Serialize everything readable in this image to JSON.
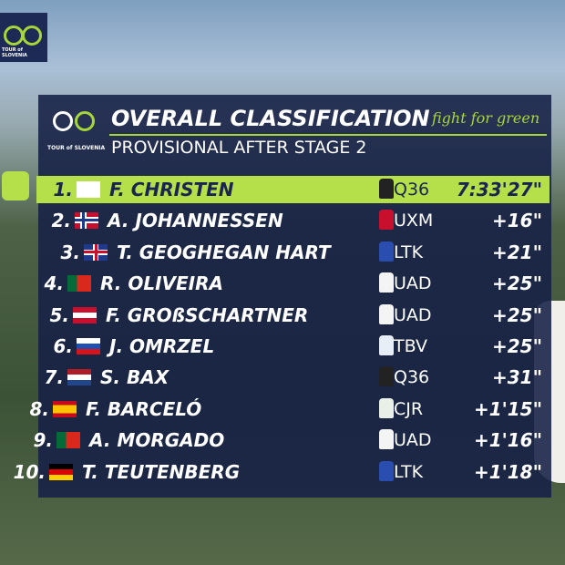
{
  "logo": {
    "text": "TOUR of SLOVENIA"
  },
  "header": {
    "logo_text": "TOUR of SLOVENIA",
    "title": "OVERALL CLASSIFICATION",
    "slogan": "fight for green",
    "subtitle": "PROVISIONAL AFTER STAGE 2"
  },
  "rows": [
    {
      "rank": "1.",
      "name": "F. CHRISTEN",
      "team": "Q36",
      "time": "7:33'27\""
    },
    {
      "rank": "2.",
      "name": "A. JOHANNESSEN",
      "team": "UXM",
      "time": "+16\""
    },
    {
      "rank": "3.",
      "name": "T. GEOGHEGAN HART",
      "team": "LTK",
      "time": "+21\""
    },
    {
      "rank": "4.",
      "name": "R. OLIVEIRA",
      "team": "UAD",
      "time": "+25\""
    },
    {
      "rank": "5.",
      "name": "F. GROßSCHARTNER",
      "team": "UAD",
      "time": "+25\""
    },
    {
      "rank": "6.",
      "name": "J. OMRZEL",
      "team": "TBV",
      "time": "+25\""
    },
    {
      "rank": "7.",
      "name": "S. BAX",
      "team": "Q36",
      "time": "+31\""
    },
    {
      "rank": "8.",
      "name": "F. BARCELÓ",
      "team": "CJR",
      "time": "+1'15\""
    },
    {
      "rank": "9.",
      "name": "A. MORGADO",
      "team": "UAD",
      "time": "+1'16\""
    },
    {
      "rank": "10.",
      "name": "T. TEUTENBERG",
      "team": "LTK",
      "time": "+1'18\""
    }
  ]
}
